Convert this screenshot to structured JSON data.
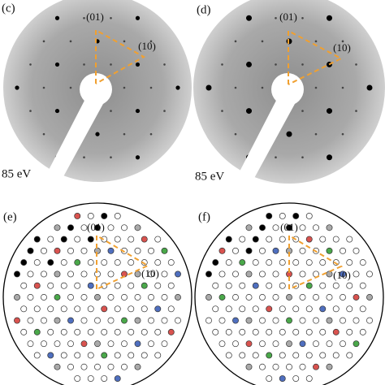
{
  "panels": [
    {
      "label": "(c)",
      "energy": "85 eV",
      "spot_labels": [
        "(01)",
        "(10)"
      ]
    },
    {
      "label": "(d)",
      "energy": "85 eV",
      "spot_labels": [
        "(01)",
        "(10)"
      ]
    },
    {
      "label": "(e)",
      "spot_labels": [
        "(01)",
        "(10)"
      ]
    },
    {
      "label": "(f)",
      "spot_labels": [
        "(01)",
        "(10)"
      ]
    }
  ]
}
